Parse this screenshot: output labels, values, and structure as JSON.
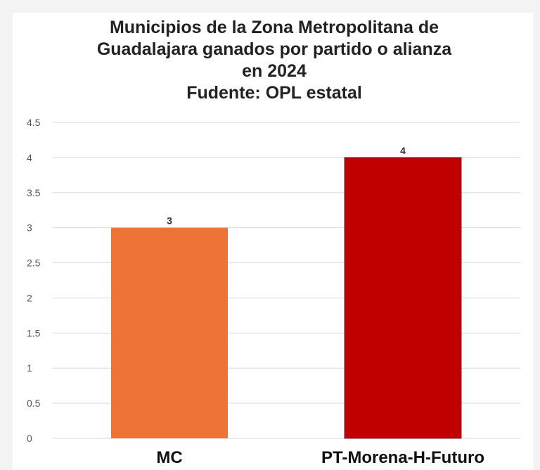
{
  "chart_data": {
    "type": "bar",
    "title_lines": [
      "Municipios de la Zona Metropolitana de",
      "Guadalajara ganados por partido o alianza",
      "en 2024",
      "Fudente: OPL estatal"
    ],
    "categories": [
      "MC",
      "PT-Morena-H-Futuro"
    ],
    "values": [
      3,
      4
    ],
    "data_labels": [
      "3",
      "4"
    ],
    "bar_colors": [
      "#ed7436",
      "#c00000"
    ],
    "ylim": [
      0,
      4.5
    ],
    "y_ticks": [
      0,
      0.5,
      1,
      1.5,
      2,
      2.5,
      3,
      3.5,
      4,
      4.5
    ],
    "y_tick_labels": [
      "0",
      "0.5",
      "1",
      "1.5",
      "2",
      "2.5",
      "3",
      "3.5",
      "4",
      "4.5"
    ],
    "grid": true,
    "legend": "none",
    "xlabel": "",
    "ylabel": ""
  },
  "colors": {
    "grid": "#d9d9d9",
    "background": "#ffffff"
  }
}
